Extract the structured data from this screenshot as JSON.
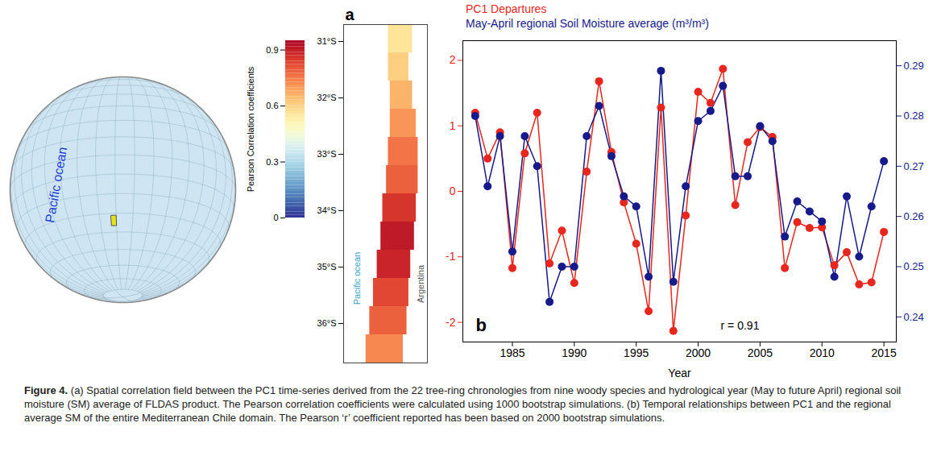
{
  "chart_data": [
    {
      "type": "map",
      "annotations": [
        "Pacific ocean"
      ],
      "study_area": {
        "lon": [
          -73,
          -70
        ],
        "lat": [
          -36.5,
          -31
        ]
      },
      "color": "#e3e31c"
    },
    {
      "type": "heatmap",
      "panel": "a",
      "annotations": [
        "Pacific ocean",
        "Argentina"
      ],
      "xlim": [
        -74,
        -69.5
      ],
      "ylim": [
        -36.7,
        -30.7
      ],
      "yticks": [
        {
          "value": -31,
          "label": "31°S"
        },
        {
          "value": -32,
          "label": "32°S"
        },
        {
          "value": -33,
          "label": "33°S"
        },
        {
          "value": -34,
          "label": "34°S"
        },
        {
          "value": -35,
          "label": "35°S"
        },
        {
          "value": -36,
          "label": "36°S"
        }
      ],
      "tick_labels": "y",
      "cells": {
        "lat": [
          -30.7,
          -31.2,
          -31.7,
          -32.2,
          -32.7,
          -33.2,
          -33.7,
          -34.2,
          -34.7,
          -35.2,
          -35.7,
          -36.2
        ],
        "coast_lon": [
          -71.6,
          -71.6,
          -71.5,
          -71.5,
          -71.6,
          -71.7,
          -71.9,
          -72.0,
          -72.2,
          -72.4,
          -72.6,
          -72.8
        ],
        "border_lon": [
          -70.3,
          -70.5,
          -70.3,
          -70.1,
          -70.0,
          -70.0,
          -70.1,
          -70.2,
          -70.4,
          -70.5,
          -70.6,
          -70.8
        ],
        "r": [
          0.55,
          0.6,
          0.65,
          0.7,
          0.75,
          0.78,
          0.85,
          0.9,
          0.88,
          0.82,
          0.78,
          0.72
        ]
      },
      "colorbar": {
        "label": "Pearson Correlation coefficients",
        "range": [
          0,
          0.95
        ],
        "ticks": [
          0,
          0.3,
          0.6,
          0.9
        ]
      }
    },
    {
      "type": "line",
      "panel": "b",
      "xlabel": "Year",
      "x": [
        1982,
        1983,
        1984,
        1985,
        1986,
        1987,
        1988,
        1989,
        1990,
        1991,
        1992,
        1993,
        1994,
        1995,
        1996,
        1997,
        1998,
        1999,
        2000,
        2001,
        2002,
        2003,
        2004,
        2005,
        2006,
        2007,
        2008,
        2009,
        2010,
        2011,
        2012,
        2013,
        2014,
        2015
      ],
      "xlim": [
        1981,
        2016
      ],
      "xticks": [
        1985,
        1990,
        1995,
        2000,
        2005,
        2010,
        2015
      ],
      "ylim": [
        -2.3,
        2.3
      ],
      "yticks": [
        -2,
        -1,
        0,
        1,
        2
      ],
      "y2lim": [
        0.235,
        0.295
      ],
      "y2ticks": [
        0.24,
        0.25,
        0.26,
        0.27,
        0.28,
        0.29
      ],
      "legend": "top-left",
      "annotations": [
        "r = 0.91"
      ],
      "series": [
        {
          "name": "PC1 Departures",
          "color": "#e8261e",
          "marker": "circle",
          "values": [
            1.2,
            0.5,
            0.9,
            -1.17,
            0.58,
            1.2,
            -1.1,
            -0.6,
            -1.4,
            0.3,
            1.68,
            0.6,
            -0.17,
            -0.8,
            -1.83,
            1.28,
            -2.13,
            -0.37,
            1.52,
            1.35,
            1.87,
            -0.21,
            0.75,
            0.98,
            0.83,
            -1.17,
            -0.47,
            -0.56,
            -0.55,
            -1.13,
            -0.93,
            -1.42,
            -1.39,
            -0.62
          ]
        },
        {
          "name": "May-April regional Soil Moisture average (m³/m³)",
          "color": "#161a8a",
          "marker": "circle",
          "axis": "y2",
          "values": [
            0.28,
            0.266,
            0.276,
            0.253,
            0.276,
            0.27,
            0.243,
            0.25,
            0.25,
            0.276,
            0.282,
            0.272,
            0.264,
            0.262,
            0.248,
            0.289,
            0.247,
            0.266,
            0.279,
            0.281,
            0.286,
            0.268,
            0.268,
            0.278,
            0.275,
            0.256,
            0.263,
            0.261,
            0.259,
            0.248,
            0.264,
            0.252,
            0.262,
            0.271
          ]
        }
      ]
    }
  ],
  "caption_label": "Figure 4.",
  "caption": "(a) Spatial correlation field between the PC1 time-series derived from the 22 tree-ring chronologies from nine woody species and hydrological year (May to future April) regional soil moisture (SM) average of FLDAS product. The Pearson correlation coefficients were calculated using 1000 bootstrap simulations. (b) Temporal relationships between PC1 and the regional average SM of the entire Mediterranean Chile domain. The Pearson ‘r’ coefficient reported has been based on 2000 bootstrap simulations."
}
